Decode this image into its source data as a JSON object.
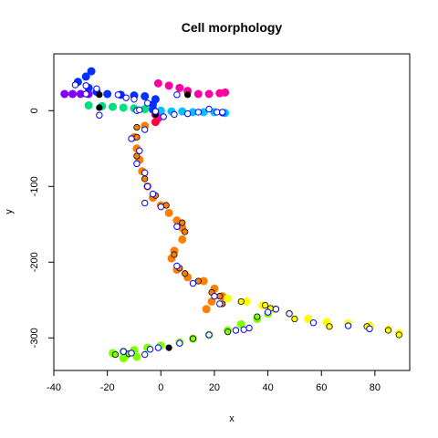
{
  "chart_data": {
    "type": "scatter",
    "title": "Cell morphology",
    "xlabel": "x",
    "ylabel": "y",
    "xlim": [
      -40,
      93
    ],
    "ylim": [
      -343,
      75
    ],
    "xticks": [
      -40,
      -20,
      0,
      20,
      40,
      60,
      80
    ],
    "yticks": [
      0,
      -100,
      -200,
      -300
    ],
    "grid": false,
    "series": [
      {
        "color": "#ff8000",
        "points": [
          [
            -2,
            -5
          ],
          [
            -6,
            -20
          ],
          [
            -10,
            -35
          ],
          [
            -9,
            -50
          ],
          [
            -8,
            -65
          ],
          [
            -7,
            -80
          ],
          [
            -5,
            -100
          ],
          [
            -3,
            -115
          ],
          [
            0,
            -125
          ],
          [
            3,
            -135
          ],
          [
            6,
            -145
          ],
          [
            8,
            -155
          ],
          [
            8,
            -170
          ],
          [
            5,
            -185
          ],
          [
            4,
            -195
          ],
          [
            6,
            -210
          ],
          [
            10,
            -220
          ],
          [
            16,
            -225
          ],
          [
            20,
            -235
          ],
          [
            23,
            -245
          ],
          [
            19,
            -252
          ],
          [
            17,
            -262
          ]
        ]
      },
      {
        "color": "#ffff00",
        "points": [
          [
            25,
            -248
          ],
          [
            32,
            -252
          ],
          [
            38,
            -257
          ],
          [
            42,
            -262
          ],
          [
            48,
            -268
          ],
          [
            55,
            -275
          ],
          [
            62,
            -279
          ],
          [
            70,
            -281
          ],
          [
            78,
            -284
          ],
          [
            85,
            -289
          ],
          [
            89,
            -294
          ]
        ]
      },
      {
        "color": "#80ff00",
        "points": [
          [
            40,
            -268
          ],
          [
            36,
            -275
          ],
          [
            30,
            -282
          ],
          [
            25,
            -290
          ],
          [
            18,
            -296
          ],
          [
            12,
            -301
          ],
          [
            7,
            -306
          ],
          [
            0,
            -310
          ],
          [
            -5,
            -313
          ],
          [
            -10,
            -316
          ],
          [
            -14,
            -318
          ],
          [
            -18,
            -320
          ],
          [
            -13,
            -323
          ],
          [
            -9,
            -325
          ],
          [
            -14,
            -327
          ]
        ]
      },
      {
        "color": "#00e080",
        "points": [
          [
            -27,
            7
          ],
          [
            -22,
            6
          ],
          [
            -18,
            5
          ],
          [
            -14,
            4
          ],
          [
            -10,
            3
          ],
          [
            -6,
            2
          ],
          [
            -3,
            1
          ]
        ]
      },
      {
        "color": "#00c0ff",
        "points": [
          [
            0,
            0
          ],
          [
            4,
            -1
          ],
          [
            8,
            -1
          ],
          [
            12,
            -2
          ],
          [
            16,
            -2
          ],
          [
            20,
            -2
          ],
          [
            24,
            -3
          ]
        ]
      },
      {
        "color": "#0030ff",
        "points": [
          [
            -26,
            52
          ],
          [
            -28,
            45
          ],
          [
            -31,
            38
          ],
          [
            -27,
            30
          ],
          [
            -24,
            25
          ],
          [
            -20,
            22
          ],
          [
            -15,
            21
          ],
          [
            -10,
            20
          ],
          [
            -6,
            19
          ],
          [
            -2,
            15
          ],
          [
            -3,
            8
          ],
          [
            -3,
            2
          ]
        ]
      },
      {
        "color": "#8000ff",
        "points": [
          [
            -36,
            22
          ],
          [
            -33,
            22
          ],
          [
            -30,
            22
          ],
          [
            -27,
            22
          ]
        ]
      },
      {
        "color": "#ff00a0",
        "points": [
          [
            -1,
            36
          ],
          [
            3,
            33
          ],
          [
            7,
            30
          ],
          [
            10,
            26
          ],
          [
            14,
            22
          ],
          [
            18,
            22
          ],
          [
            22,
            23
          ],
          [
            24,
            24
          ],
          [
            -2,
            -5
          ],
          [
            -1,
            -10
          ]
        ]
      },
      {
        "color": "#ff0040",
        "points": [
          [
            -2,
            -15
          ]
        ]
      }
    ],
    "highlights": [
      {
        "color": "#ff8000",
        "points": [
          [
            -9,
            -22
          ],
          [
            -9,
            -35
          ],
          [
            -9,
            -60
          ],
          [
            -6,
            -90
          ],
          [
            -2,
            -112
          ],
          [
            2,
            -125
          ],
          [
            8,
            -148
          ],
          [
            9,
            -160
          ],
          [
            5,
            -190
          ],
          [
            7,
            -208
          ],
          [
            9,
            -215
          ],
          [
            14,
            -225
          ],
          [
            19,
            -240
          ],
          [
            22,
            -245
          ],
          [
            23,
            -255
          ]
        ]
      },
      {
        "color": "#ffff00",
        "points": [
          [
            30,
            -252
          ],
          [
            39,
            -257
          ],
          [
            41,
            -261
          ],
          [
            50,
            -275
          ],
          [
            63,
            -285
          ],
          [
            77,
            -285
          ],
          [
            85,
            -290
          ],
          [
            89,
            -296
          ]
        ]
      },
      {
        "color": "#80ff00",
        "points": [
          [
            36,
            -272
          ],
          [
            28,
            -290
          ],
          [
            25,
            -292
          ],
          [
            12,
            -301
          ],
          [
            -12,
            -321
          ],
          [
            -17,
            -322
          ]
        ]
      },
      {
        "color": "#000000",
        "points": [
          [
            43,
            -262
          ],
          [
            -23,
            4
          ],
          [
            -2,
            -5
          ],
          [
            -23,
            21
          ],
          [
            10,
            21
          ],
          [
            3,
            -313
          ]
        ]
      }
    ],
    "open_circles": {
      "color": "#0000ff",
      "points": [
        [
          -32,
          34
        ],
        [
          -28,
          33
        ],
        [
          -24,
          29
        ],
        [
          -28,
          22
        ],
        [
          -16,
          21
        ],
        [
          -13,
          17
        ],
        [
          -10,
          15
        ],
        [
          -5,
          10
        ],
        [
          -2,
          -1
        ],
        [
          -6,
          -25
        ],
        [
          -8,
          -53
        ],
        [
          -9,
          -70
        ],
        [
          -6,
          -82
        ],
        [
          -5,
          -100
        ],
        [
          -3,
          -110
        ],
        [
          0,
          -127
        ],
        [
          6,
          -153
        ],
        [
          6,
          -205
        ],
        [
          12,
          -228
        ],
        [
          20,
          -245
        ],
        [
          22,
          -255
        ],
        [
          40,
          -266
        ],
        [
          43,
          -262
        ],
        [
          48,
          -268
        ],
        [
          57,
          -280
        ],
        [
          70,
          -284
        ],
        [
          78,
          -288
        ],
        [
          -14,
          -318
        ],
        [
          -11,
          -320
        ],
        [
          -6,
          -322
        ],
        [
          -4,
          -315
        ],
        [
          -1,
          -313
        ],
        [
          7,
          -307
        ],
        [
          18,
          -296
        ],
        [
          28,
          -290
        ],
        [
          31,
          -289
        ],
        [
          33,
          -287
        ],
        [
          1,
          -8
        ],
        [
          18,
          2
        ],
        [
          21,
          -2
        ],
        [
          23,
          -3
        ],
        [
          23,
          -2
        ],
        [
          -23,
          -6
        ],
        [
          -9,
          0
        ],
        [
          -11,
          -37
        ],
        [
          -6,
          -122
        ],
        [
          6,
          21
        ],
        [
          10,
          -4
        ],
        [
          14,
          -2
        ],
        [
          5,
          -5
        ],
        [
          -8,
          1
        ]
      ]
    }
  }
}
